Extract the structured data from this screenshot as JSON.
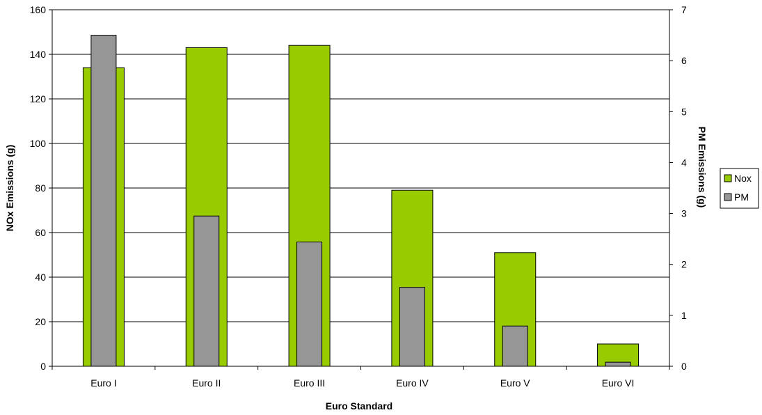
{
  "chart_data": {
    "type": "bar",
    "categories": [
      "Euro I",
      "Euro II",
      "Euro III",
      "Euro IV",
      "Euro V",
      "Euro VI"
    ],
    "xlabel": "Euro Standard",
    "ylabel": "NOx Emissions (g)",
    "y2label": "PM Emissions (g)",
    "ylim": [
      0,
      160
    ],
    "y2lim": [
      0,
      7
    ],
    "yticks": [
      0,
      20,
      40,
      60,
      80,
      100,
      120,
      140,
      160
    ],
    "y2ticks": [
      0,
      1,
      2,
      3,
      4,
      5,
      6,
      7
    ],
    "grid": true,
    "legend_position": "right",
    "series": [
      {
        "name": "Nox",
        "axis": "left",
        "color": "#99CC00",
        "values": [
          134,
          143,
          144,
          79,
          51,
          10
        ]
      },
      {
        "name": "PM",
        "axis": "right",
        "color": "#969696",
        "values": [
          6.5,
          2.95,
          2.44,
          1.55,
          0.79,
          0.08
        ]
      }
    ]
  }
}
